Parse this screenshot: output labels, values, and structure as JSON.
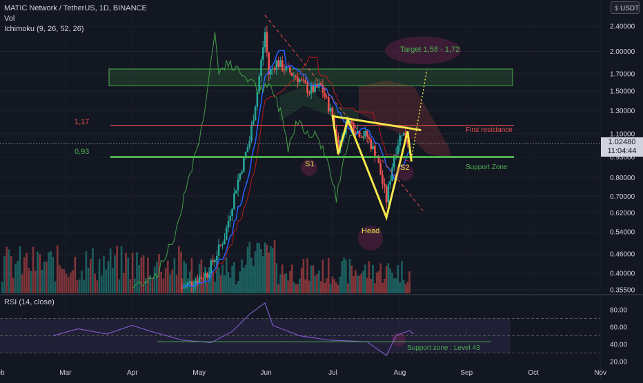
{
  "header": {
    "title": "MATIC Network / TetherUS, 1D, BINANCE",
    "indicators": [
      "Vol",
      "Ichimoku (9, 26, 52, 26)"
    ],
    "currency": "USDT",
    "rsi_label": "RSI (14, close)"
  },
  "price_tag": {
    "price": "1.02480",
    "countdown": "11:04:44"
  },
  "annotations": {
    "target": "Target 1,58 - 1,72",
    "resistance_value": "1,17",
    "resistance_label": "First resistance",
    "support_value": "0,93",
    "support_label": "Support Zone",
    "s1": "S1",
    "s2": "S2",
    "head": "Head",
    "rsi_support": "Support zone : Level 43"
  },
  "colors": {
    "background": "#131722",
    "up_candle": "#26a69a",
    "down_candle": "#ef5350",
    "pattern": "#f5e64a",
    "support": "#4caf50",
    "resistance": "#ef5350",
    "rsi": "#7e57c2",
    "tenkan": "#2962ff",
    "kijun": "#b71c1c",
    "lagging": "#43a047"
  },
  "chart_data": [
    {
      "type": "candlestick",
      "title": "MATIC Network / TetherUS, 1D, BINANCE",
      "y_scale": "log",
      "y_ticks": [
        "2.40000",
        "2.00000",
        "1.70000",
        "1.50000",
        "1.30000",
        "1.10000",
        "0.93000",
        "0.80000",
        "0.70000",
        "0.62000",
        "0.54000",
        "0.46000",
        "0.40000",
        "0.35500"
      ],
      "x_ticks": [
        "Feb",
        "Mar",
        "Apr",
        "May",
        "Jun",
        "Jul",
        "Aug",
        "Sep",
        "Oct",
        "Nov"
      ],
      "close_path": [
        {
          "date": "2021-04-05",
          "close": 0.36
        },
        {
          "date": "2021-04-18",
          "close": 0.4
        },
        {
          "date": "2021-04-27",
          "close": 0.52
        },
        {
          "date": "2021-05-03",
          "close": 0.75
        },
        {
          "date": "2021-05-10",
          "close": 1.05
        },
        {
          "date": "2021-05-14",
          "close": 1.5
        },
        {
          "date": "2021-05-18",
          "close": 2.3
        },
        {
          "date": "2021-05-20",
          "close": 1.7
        },
        {
          "date": "2021-05-24",
          "close": 1.85
        },
        {
          "date": "2021-05-29",
          "close": 1.75
        },
        {
          "date": "2021-06-04",
          "close": 1.65
        },
        {
          "date": "2021-06-10",
          "close": 1.5
        },
        {
          "date": "2021-06-16",
          "close": 1.55
        },
        {
          "date": "2021-06-22",
          "close": 1.25
        },
        {
          "date": "2021-06-25",
          "close": 1.0
        },
        {
          "date": "2021-06-30",
          "close": 1.22
        },
        {
          "date": "2021-07-05",
          "close": 1.12
        },
        {
          "date": "2021-07-10",
          "close": 1.08
        },
        {
          "date": "2021-07-15",
          "close": 0.93
        },
        {
          "date": "2021-07-20",
          "close": 0.68
        },
        {
          "date": "2021-07-24",
          "close": 0.95
        },
        {
          "date": "2021-07-28",
          "close": 1.12
        },
        {
          "date": "2021-07-31",
          "close": 1.05
        },
        {
          "date": "2021-08-02",
          "close": 1.02
        }
      ],
      "levels": {
        "first_resistance": 1.17,
        "support_zone": 0.93
      },
      "target_zone": [
        1.58,
        1.72
      ],
      "pattern": "inverse head and shoulders"
    },
    {
      "type": "line",
      "title": "RSI (14, close)",
      "y_ticks": [
        "80.00",
        "60.00",
        "40.00",
        "20.00"
      ],
      "support_level": 43,
      "values": [
        {
          "date": "2021-01-28",
          "rsi": 50
        },
        {
          "date": "2021-02-10",
          "rsi": 58
        },
        {
          "date": "2021-02-25",
          "rsi": 52
        },
        {
          "date": "2021-03-10",
          "rsi": 62
        },
        {
          "date": "2021-03-20",
          "rsi": 55
        },
        {
          "date": "2021-04-05",
          "rsi": 45
        },
        {
          "date": "2021-04-20",
          "rsi": 42
        },
        {
          "date": "2021-05-01",
          "rsi": 55
        },
        {
          "date": "2021-05-10",
          "rsi": 75
        },
        {
          "date": "2021-05-18",
          "rsi": 88
        },
        {
          "date": "2021-05-22",
          "rsi": 62
        },
        {
          "date": "2021-06-05",
          "rsi": 50
        },
        {
          "date": "2021-06-20",
          "rsi": 45
        },
        {
          "date": "2021-07-01",
          "rsi": 44
        },
        {
          "date": "2021-07-10",
          "rsi": 43
        },
        {
          "date": "2021-07-20",
          "rsi": 27
        },
        {
          "date": "2021-07-25",
          "rsi": 50
        },
        {
          "date": "2021-08-01",
          "rsi": 56
        },
        {
          "date": "2021-08-03",
          "rsi": 52
        }
      ]
    }
  ]
}
